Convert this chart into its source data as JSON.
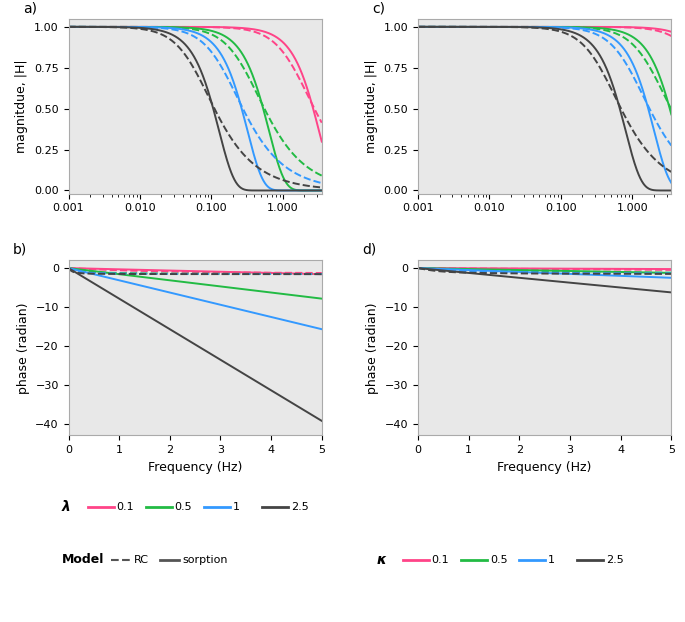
{
  "lambda_values": [
    0.1,
    0.5,
    1.0,
    2.5
  ],
  "kappa_values": [
    0.1,
    0.5,
    1.0,
    2.5
  ],
  "colors": [
    "#FF4488",
    "#22BB44",
    "#3399FF",
    "#444444"
  ],
  "freq_log_min": -3,
  "freq_log_max": 0.544,
  "freq_lin_min": 0,
  "freq_lin_max": 5,
  "mag_ylim": [
    -0.02,
    1.05
  ],
  "mag_yticks": [
    0.0,
    0.25,
    0.5,
    0.75,
    1.0
  ],
  "phase_ylim": [
    -43,
    2
  ],
  "phase_yticks": [
    0,
    -10,
    -20,
    -30,
    -40
  ],
  "panel_labels": [
    "a)",
    "b)",
    "c)",
    "d)"
  ],
  "ylabel_mag": "magnitdue, |H|",
  "ylabel_phase": "phase (radian)",
  "xlabel": "Frequency (Hz)",
  "legend_lambda_label": "λ",
  "legend_kappa_label": "κ",
  "legend_lambda_vals": [
    "0.1",
    "0.5",
    "1",
    "2.5"
  ],
  "legend_kappa_vals": [
    "0.1",
    "0.5",
    "1",
    "2.5"
  ],
  "legend_model_label": "Model",
  "legend_rc": "RC",
  "legend_sorption": "sorption",
  "fs": 9,
  "background_color": "#FFFFFF",
  "plot_bg": "#E8E8E8",
  "log_xticks": [
    0.001,
    0.01,
    0.1,
    1.0
  ],
  "log_xticklabels": [
    "0.001",
    "0.010",
    "0.100",
    "1.000"
  ]
}
